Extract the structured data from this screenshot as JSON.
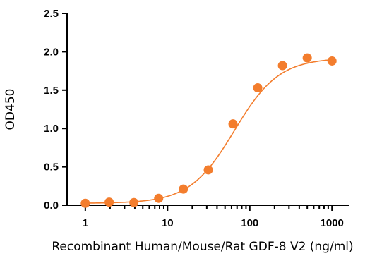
{
  "chart_data": {
    "type": "scatter",
    "title": "",
    "xlabel": "Recombinant Human/Mouse/Rat GDF-8 V2 (ng/ml)",
    "ylabel": "OD450",
    "x_scale": "log",
    "xlim": [
      0.6,
      1600
    ],
    "ylim": [
      0,
      2.5
    ],
    "x_ticks": [
      1,
      10,
      100,
      1000
    ],
    "x_tick_labels": [
      "1",
      "10",
      "100",
      "1000"
    ],
    "y_ticks": [
      0,
      0.5,
      1,
      1.5,
      2,
      2.5
    ],
    "y_tick_labels": [
      "0.0",
      "0.5",
      "1.0",
      "1.5",
      "2.0",
      "2.5"
    ],
    "grid": false,
    "series": [
      {
        "color": "#F37D2D",
        "fit": "4PL sigmoidal curve",
        "x": [
          1,
          1.95,
          3.9,
          7.8,
          15.6,
          31.3,
          62.5,
          125,
          250,
          500,
          1000
        ],
        "y": [
          0.025,
          0.04,
          0.035,
          0.09,
          0.21,
          0.46,
          1.06,
          1.53,
          1.82,
          1.92,
          1.88
        ]
      }
    ]
  }
}
